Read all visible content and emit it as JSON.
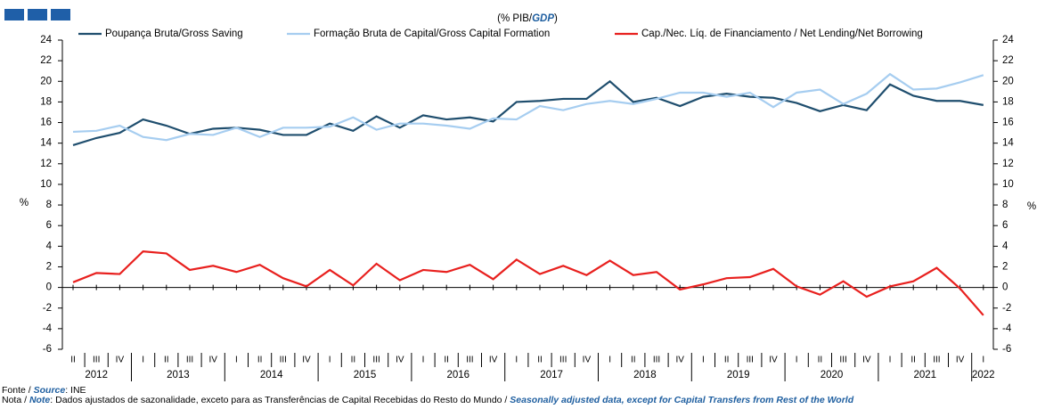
{
  "chart_data": {
    "type": "line",
    "title": [
      "(% PIB/",
      "GDP",
      ")"
    ],
    "y_label": "%",
    "y2_label": "%",
    "categories": [
      "II",
      "III",
      "IV",
      "I",
      "II",
      "III",
      "IV",
      "I",
      "II",
      "III",
      "IV",
      "I",
      "II",
      "III",
      "IV",
      "I",
      "II",
      "III",
      "IV",
      "I",
      "II",
      "III",
      "IV",
      "I",
      "II",
      "III",
      "IV",
      "I",
      "II",
      "III",
      "IV",
      "I",
      "II",
      "III",
      "IV",
      "I",
      "II",
      "III",
      "IV",
      "I"
    ],
    "year_labels": [
      "2012",
      "2013",
      "2014",
      "2015",
      "2016",
      "2017",
      "2018",
      "2019",
      "2020",
      "2021",
      "2022"
    ],
    "series": [
      {
        "name": "Poupança Bruta/Gross Saving",
        "color": "#1f4e6e",
        "values": [
          13.8,
          14.5,
          15.0,
          16.3,
          15.7,
          14.9,
          15.4,
          15.5,
          15.3,
          14.8,
          14.8,
          15.9,
          15.2,
          16.6,
          15.5,
          16.7,
          16.3,
          16.5,
          16.1,
          18.0,
          18.1,
          18.3,
          18.3,
          20.0,
          18.0,
          18.4,
          17.6,
          18.5,
          18.8,
          18.5,
          18.4,
          17.9,
          17.1,
          17.7,
          17.2,
          19.7,
          18.6,
          18.1,
          18.1,
          17.7
        ]
      },
      {
        "name": "Formação Bruta de Capital/Gross Capital Formation",
        "color": "#a6cdf0",
        "values": [
          15.1,
          15.2,
          15.7,
          14.6,
          14.3,
          14.9,
          14.8,
          15.5,
          14.6,
          15.5,
          15.5,
          15.6,
          16.5,
          15.3,
          15.9,
          15.9,
          15.7,
          15.4,
          16.4,
          16.3,
          17.6,
          17.2,
          17.8,
          18.1,
          17.8,
          18.3,
          18.9,
          18.9,
          18.5,
          18.9,
          17.5,
          18.9,
          19.2,
          17.8,
          18.8,
          20.7,
          19.2,
          19.3,
          19.9,
          20.6
        ]
      },
      {
        "name": "Cap./Nec. Líq. de Financiamento / Net Lending/Net Borrowing",
        "color": "#e8201e",
        "values": [
          0.5,
          1.4,
          1.3,
          3.5,
          3.3,
          1.7,
          2.1,
          1.5,
          2.2,
          0.9,
          0.1,
          1.7,
          0.2,
          2.3,
          0.7,
          1.7,
          1.5,
          2.2,
          0.8,
          2.7,
          1.3,
          2.1,
          1.2,
          2.6,
          1.2,
          1.5,
          -0.2,
          0.3,
          0.9,
          1.0,
          1.8,
          0.1,
          -0.7,
          0.6,
          -0.9,
          0.1,
          0.6,
          1.9,
          -0.1,
          -2.7
        ]
      }
    ],
    "ylim": [
      -6,
      24
    ],
    "yticks": [
      -6,
      -4,
      -2,
      0,
      2,
      4,
      6,
      8,
      10,
      12,
      14,
      16,
      18,
      20,
      22,
      24
    ],
    "y2lim": [
      -6,
      24
    ],
    "y2ticks": [
      -6,
      -4,
      -2,
      0,
      2,
      4,
      6,
      8,
      10,
      12,
      14,
      16,
      18,
      20,
      22,
      24
    ],
    "legend": "top"
  },
  "source": [
    "Fonte / ",
    "Source",
    ":  INE"
  ],
  "note": [
    "Nota / ",
    "Note",
    ":  Dados ajustados de sazonalidade, exceto para as Transferências de Capital Recebidas do Resto do Mundo / ",
    "Seasonally adjusted data, except for Capital Transfers from Rest of the World"
  ]
}
